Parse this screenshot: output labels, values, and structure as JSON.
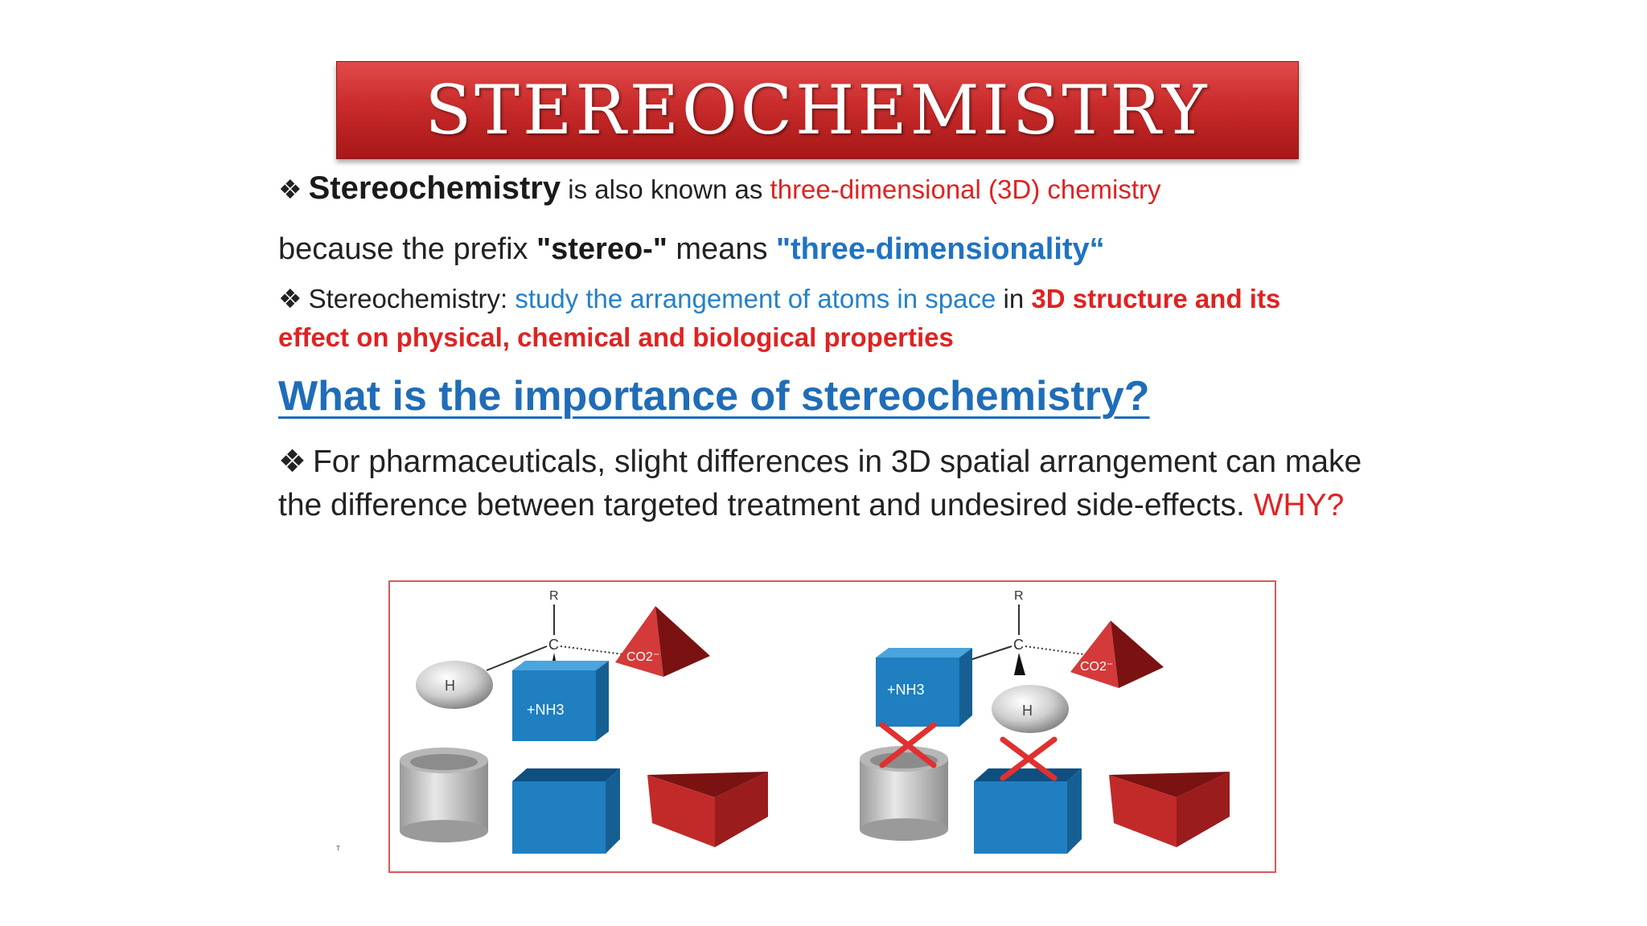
{
  "title": "STEREOCHEMISTRY",
  "bullet_glyph": "❖",
  "line1": {
    "term": "Stereochemistry",
    "middle": " is also known as ",
    "highlight": "three-dimensional (3D) chemistry"
  },
  "line2": {
    "start": "because the prefix ",
    "prefix": "\"stereo-\"",
    "middle": " means ",
    "meaning": "\"three-dimensionality“"
  },
  "line3": {
    "label": "Stereochemistry: ",
    "definition": "study the arrangement of atoms in space",
    "connector": " in ",
    "emphasis_part1": "3D structure and its",
    "emphasis_part2": "effect on physical, chemical and biological properties"
  },
  "question_heading": "What is the importance of stereochemistry?",
  "paragraph": {
    "text": "For pharmaceuticals, slight differences in 3D spatial arrangement can make the difference between targeted treatment and undesired side-effects. ",
    "why": "WHY?"
  },
  "diagram": {
    "left_molecule": {
      "top_label": "R",
      "center_label": "C",
      "sphere_label": "H",
      "cube_label": "+NH3",
      "pyramid_label": "CO2⁻"
    },
    "right_molecule": {
      "top_label": "R",
      "center_label": "C",
      "sphere_label": "H",
      "cube_label": "+NH3",
      "pyramid_label": "CO2⁻"
    },
    "colors": {
      "blue": "#1f7fc0",
      "red": "#c22a2a",
      "gray": "#c9c9c9",
      "cross": "#e03030"
    }
  },
  "stray_mark": "ᵀ"
}
